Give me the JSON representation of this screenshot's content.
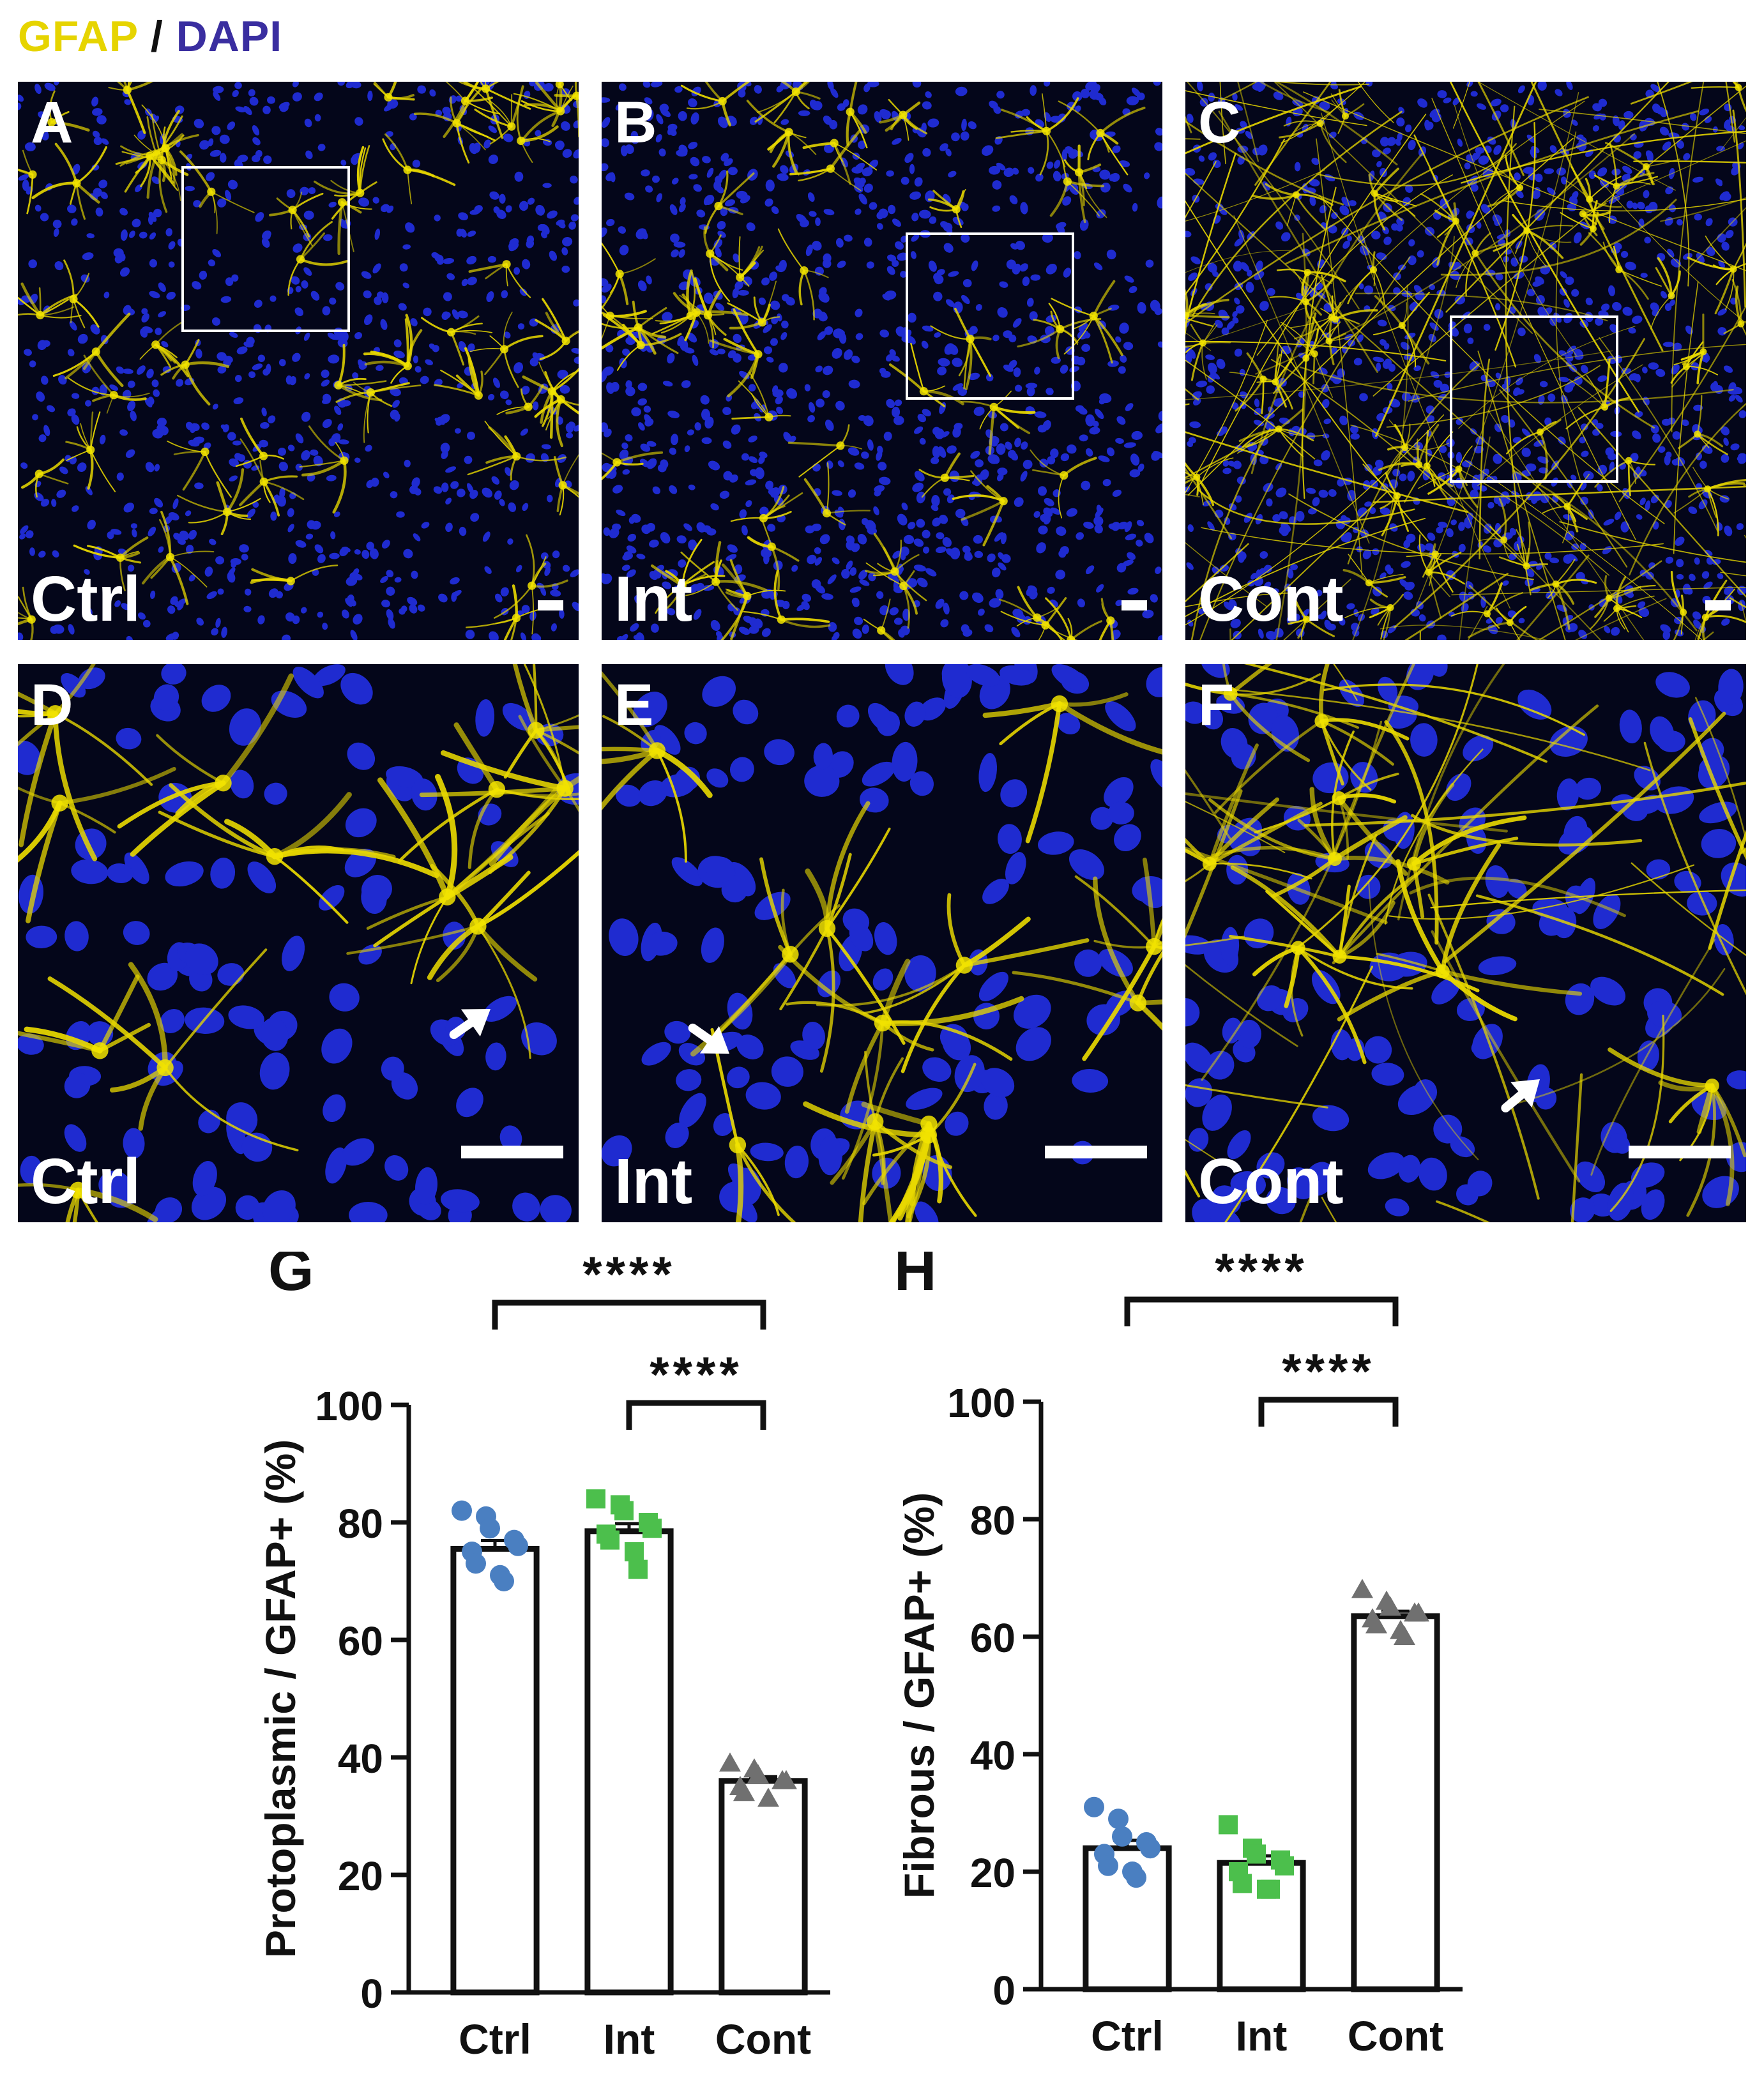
{
  "legend": {
    "gfap": "GFAP",
    "slash": "/",
    "dapi": "DAPI",
    "gfap_color": "#e6d400",
    "dapi_color": "#3a2ea0"
  },
  "panels": [
    {
      "id": "A",
      "label": "A",
      "condition": "Ctrl"
    },
    {
      "id": "B",
      "label": "B",
      "condition": "Int"
    },
    {
      "id": "C",
      "label": "C",
      "condition": "Cont"
    },
    {
      "id": "D",
      "label": "D",
      "condition": "Ctrl"
    },
    {
      "id": "E",
      "label": "E",
      "condition": "Int"
    },
    {
      "id": "F",
      "label": "F",
      "condition": "Cont"
    }
  ],
  "chart_data": [
    {
      "type": "bar",
      "panel_label": "G",
      "ylabel": "Protoplasmic / GFAP+ (%)",
      "categories": [
        "Ctrl",
        "Int",
        "Cont"
      ],
      "values": [
        75.5,
        78.5,
        36
      ],
      "ylim": [
        0,
        100
      ],
      "yticks": [
        0,
        20,
        40,
        60,
        80,
        100
      ],
      "point_colors": [
        "#4a7fc1",
        "#4cbf4c",
        "#707070"
      ],
      "points": [
        [
          82,
          81,
          79,
          77,
          76,
          75,
          73,
          71,
          70
        ],
        [
          84,
          83,
          82,
          80,
          79,
          78,
          77,
          75,
          72
        ],
        [
          39,
          38,
          37,
          36,
          36,
          35,
          34,
          33
        ]
      ],
      "significance": [
        {
          "from": "Ctrl",
          "to": "Cont",
          "label": "****"
        },
        {
          "from": "Int",
          "to": "Cont",
          "label": "****"
        }
      ]
    },
    {
      "type": "bar",
      "panel_label": "H",
      "ylabel": "Fibrous / GFAP+ (%)",
      "categories": [
        "Ctrl",
        "Int",
        "Cont"
      ],
      "values": [
        24,
        21.5,
        63.5
      ],
      "ylim": [
        0,
        100
      ],
      "yticks": [
        0,
        20,
        40,
        60,
        80,
        100
      ],
      "point_colors": [
        "#4a7fc1",
        "#4cbf4c",
        "#707070"
      ],
      "points": [
        [
          31,
          29,
          26,
          25,
          24,
          23,
          21,
          20,
          19
        ],
        [
          28,
          24,
          23,
          22,
          21,
          20,
          18,
          17,
          17
        ],
        [
          68,
          66,
          65,
          64,
          64,
          63,
          62,
          61,
          60
        ]
      ],
      "significance": [
        {
          "from": "Ctrl",
          "to": "Cont",
          "label": "****"
        },
        {
          "from": "Int",
          "to": "Cont",
          "label": "****"
        }
      ]
    }
  ]
}
